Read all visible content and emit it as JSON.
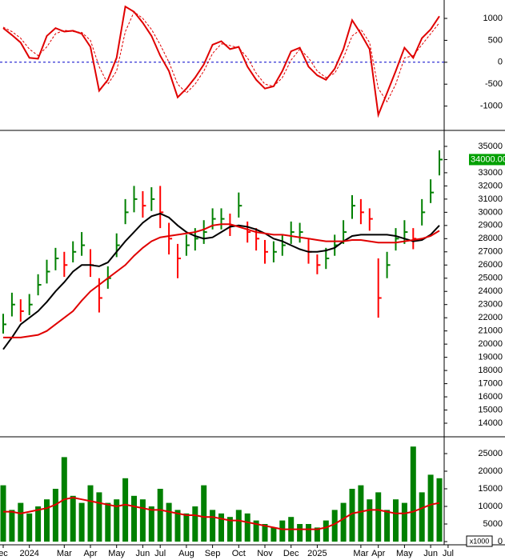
{
  "chart_data": [
    {
      "type": "line",
      "ylim": [
        -1500,
        1420
      ],
      "yticks": [
        -1000,
        -500,
        0,
        500,
        1000
      ],
      "hline": 0,
      "hline_color": "#0000cc",
      "series": [
        {
          "color": "#e00000",
          "style": "solid",
          "values": [
            780,
            620,
            450,
            100,
            80,
            600,
            780,
            700,
            720,
            650,
            350,
            -650,
            -400,
            100,
            1270,
            1150,
            900,
            600,
            150,
            -200,
            -800,
            -600,
            -350,
            -50,
            400,
            480,
            300,
            350,
            -100,
            -400,
            -600,
            -550,
            -200,
            250,
            330,
            -100,
            -300,
            -400,
            -150,
            300,
            960,
            650,
            300,
            -1200,
            -700,
            -200,
            330,
            100,
            550,
            750,
            1050,
            null
          ]
        },
        {
          "color": "#e00000",
          "style": "dashed",
          "values": [
            800,
            700,
            550,
            300,
            150,
            350,
            650,
            730,
            700,
            680,
            500,
            -100,
            -500,
            -200,
            700,
            1150,
            1000,
            750,
            400,
            0,
            -500,
            -700,
            -500,
            -200,
            200,
            420,
            380,
            330,
            100,
            -250,
            -500,
            -550,
            -350,
            50,
            300,
            100,
            -200,
            -350,
            -250,
            100,
            600,
            750,
            450,
            -600,
            -900,
            -500,
            100,
            150,
            400,
            650,
            900,
            null
          ]
        }
      ]
    },
    {
      "type": "hlc",
      "ylim": [
        13030,
        36090
      ],
      "yticks": [
        14000,
        15000,
        16000,
        17000,
        18000,
        19000,
        20000,
        21000,
        22000,
        23000,
        24000,
        25000,
        26000,
        27000,
        28000,
        29000,
        30000,
        31000,
        32000,
        33000,
        34000,
        35000
      ],
      "up_color": "#008000",
      "down_color": "#ff0000",
      "values": [
        21500,
        23000,
        22500,
        23000,
        24500,
        25500,
        26500,
        26000,
        27000,
        27500,
        26000,
        23500,
        25000,
        27500,
        30000,
        31000,
        30500,
        31000,
        30000,
        28000,
        26500,
        27500,
        28000,
        28500,
        29500,
        29500,
        29000,
        30500,
        28500,
        28000,
        27000,
        27000,
        27500,
        28500,
        28500,
        27000,
        26000,
        26500,
        27500,
        28500,
        30500,
        30000,
        29500,
        23500,
        26000,
        28000,
        28500,
        28000,
        30000,
        31500,
        34000,
        null
      ],
      "high": [
        22300,
        23900,
        23400,
        23800,
        25300,
        26400,
        27300,
        27000,
        27800,
        28500,
        27200,
        25000,
        25900,
        28400,
        31000,
        32000,
        31600,
        31900,
        32000,
        29200,
        27600,
        28300,
        28800,
        29400,
        30300,
        30300,
        29900,
        31500,
        29300,
        28800,
        27900,
        27800,
        28300,
        29300,
        29200,
        28000,
        26800,
        27300,
        28300,
        29400,
        31300,
        31000,
        30300,
        26500,
        27000,
        28800,
        29400,
        28800,
        31000,
        32500,
        34700,
        null
      ],
      "low": [
        20800,
        22100,
        21700,
        22200,
        23700,
        24600,
        25600,
        25100,
        26200,
        26700,
        25100,
        22400,
        24200,
        26600,
        29100,
        30000,
        29600,
        30100,
        28800,
        26800,
        25000,
        26700,
        27100,
        27600,
        28700,
        28700,
        28200,
        29600,
        27700,
        27100,
        26100,
        26200,
        26700,
        27600,
        27700,
        26100,
        25300,
        25700,
        26700,
        27600,
        29500,
        29100,
        28600,
        22000,
        25000,
        27100,
        27600,
        27200,
        29000,
        30700,
        32800,
        null
      ],
      "series": [
        {
          "color": "#000000",
          "values": [
            19600,
            20500,
            21500,
            22000,
            22500,
            23200,
            24000,
            24700,
            25500,
            26000,
            26000,
            25900,
            26200,
            27000,
            27800,
            28500,
            29200,
            29700,
            29900,
            29600,
            29000,
            28500,
            28200,
            28000,
            28100,
            28500,
            28900,
            29000,
            28900,
            28700,
            28400,
            28000,
            27800,
            27500,
            27200,
            27000,
            27000,
            27100,
            27300,
            27800,
            28200,
            28300,
            28300,
            28300,
            28300,
            28200,
            28000,
            27800,
            27900,
            28300,
            29000,
            null
          ]
        },
        {
          "color": "#e00000",
          "values": [
            20500,
            20500,
            20500,
            20600,
            20700,
            21000,
            21500,
            22000,
            22500,
            23300,
            24000,
            24500,
            25000,
            25500,
            26000,
            26700,
            27300,
            27800,
            28100,
            28200,
            28300,
            28400,
            28500,
            28700,
            29000,
            29100,
            29100,
            28900,
            28700,
            28500,
            28400,
            28300,
            28300,
            28200,
            28100,
            28000,
            27900,
            27800,
            27800,
            27800,
            27900,
            27900,
            27800,
            27700,
            27700,
            27700,
            27800,
            27900,
            28000,
            28200,
            28600,
            null
          ]
        }
      ],
      "last_price": {
        "value": 34000,
        "label": "34000.00"
      }
    },
    {
      "type": "bar",
      "ylim": [
        -682,
        29318
      ],
      "yticks": [
        0,
        5000,
        10000,
        15000,
        20000,
        25000
      ],
      "color": "#008000",
      "unit_label": "x1000",
      "categories": [
        "ec",
        null,
        null,
        "2024",
        null,
        null,
        null,
        "Mar",
        null,
        null,
        "Apr",
        null,
        null,
        "May",
        null,
        null,
        "Jun",
        null,
        "Jul",
        null,
        null,
        "Aug",
        null,
        null,
        "Sep",
        null,
        null,
        "Oct",
        null,
        null,
        "Nov",
        null,
        null,
        "Dec",
        null,
        null,
        "2025",
        null,
        null,
        null,
        null,
        "Mar",
        null,
        "Apr",
        null,
        null,
        "May",
        null,
        null,
        "Jun",
        null,
        "Jul"
      ],
      "values": [
        16000,
        9000,
        11000,
        8000,
        10000,
        12000,
        15000,
        24000,
        13000,
        11000,
        16000,
        14000,
        11000,
        12000,
        18000,
        13000,
        12000,
        10000,
        15000,
        11000,
        9000,
        8000,
        10000,
        16000,
        9000,
        8000,
        7000,
        9000,
        8000,
        6000,
        5000,
        4000,
        6000,
        7000,
        5000,
        5000,
        4000,
        6000,
        9000,
        11000,
        15000,
        16000,
        12000,
        14000,
        9000,
        12000,
        11000,
        27000,
        14000,
        19000,
        18000,
        null
      ],
      "series": [
        {
          "color": "#e00000",
          "values": [
            8500,
            8500,
            8000,
            8500,
            9000,
            9500,
            10500,
            12000,
            12500,
            12000,
            11500,
            11000,
            10500,
            10000,
            10500,
            10000,
            9500,
            9000,
            9000,
            8500,
            8000,
            7500,
            7500,
            7000,
            7000,
            6500,
            6000,
            6000,
            5500,
            5000,
            4500,
            4000,
            3500,
            3500,
            3500,
            3500,
            3500,
            4000,
            5000,
            6500,
            8000,
            8500,
            9000,
            9000,
            8500,
            8000,
            8000,
            8500,
            9500,
            10500,
            11000,
            null
          ]
        }
      ]
    }
  ]
}
